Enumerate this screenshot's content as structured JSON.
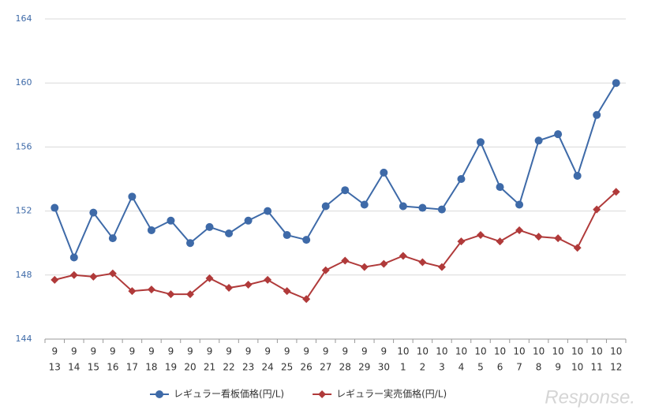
{
  "chart_data": {
    "type": "line",
    "categories": [
      [
        "9",
        "13"
      ],
      [
        "9",
        "14"
      ],
      [
        "9",
        "15"
      ],
      [
        "9",
        "16"
      ],
      [
        "9",
        "17"
      ],
      [
        "9",
        "18"
      ],
      [
        "9",
        "19"
      ],
      [
        "9",
        "20"
      ],
      [
        "9",
        "21"
      ],
      [
        "9",
        "22"
      ],
      [
        "9",
        "23"
      ],
      [
        "9",
        "24"
      ],
      [
        "9",
        "25"
      ],
      [
        "9",
        "26"
      ],
      [
        "9",
        "27"
      ],
      [
        "9",
        "28"
      ],
      [
        "9",
        "29"
      ],
      [
        "9",
        "30"
      ],
      [
        "10",
        "1"
      ],
      [
        "10",
        "2"
      ],
      [
        "10",
        "3"
      ],
      [
        "10",
        "4"
      ],
      [
        "10",
        "5"
      ],
      [
        "10",
        "6"
      ],
      [
        "10",
        "7"
      ],
      [
        "10",
        "8"
      ],
      [
        "10",
        "9"
      ],
      [
        "10",
        "10"
      ],
      [
        "10",
        "11"
      ],
      [
        "10",
        "12"
      ]
    ],
    "series": [
      {
        "name": "レギュラー看板価格(円/L)",
        "color": "#3e6aa8",
        "marker": "circle",
        "values": [
          152.2,
          149.1,
          151.9,
          150.3,
          152.9,
          150.8,
          151.4,
          150.0,
          151.0,
          150.6,
          151.4,
          152.0,
          150.5,
          150.2,
          152.3,
          153.3,
          152.4,
          154.4,
          152.3,
          152.2,
          152.1,
          154.0,
          156.3,
          153.5,
          152.4,
          156.4,
          156.8,
          154.2,
          158.0,
          160.0
        ]
      },
      {
        "name": "レギュラー実売価格(円/L)",
        "color": "#b03a3a",
        "marker": "diamond",
        "values": [
          147.7,
          148.0,
          147.9,
          148.1,
          147.0,
          147.1,
          146.8,
          146.8,
          147.8,
          147.2,
          147.4,
          147.7,
          147.0,
          146.5,
          148.3,
          148.9,
          148.5,
          148.7,
          149.2,
          148.8,
          148.5,
          150.1,
          150.5,
          150.1,
          150.8,
          150.4,
          150.3,
          149.7,
          152.1,
          153.2
        ]
      }
    ],
    "ylim": [
      144,
      164
    ],
    "yticks": [
      144,
      148,
      152,
      156,
      160,
      164
    ],
    "grid": true,
    "legend": "bottom",
    "watermark": "Response."
  }
}
